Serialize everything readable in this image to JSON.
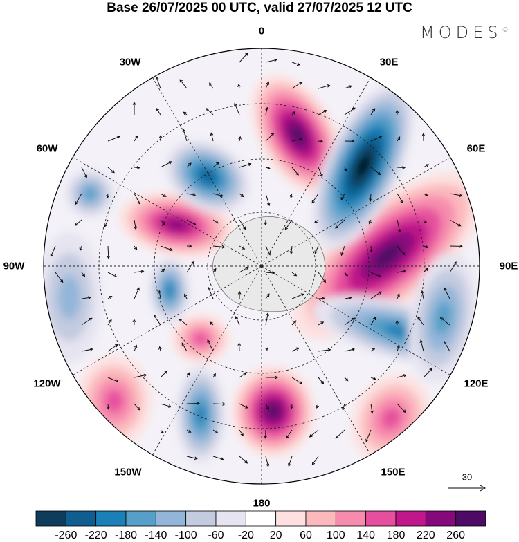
{
  "title": "Base 26/07/2025 00 UTC, valid 27/07/2025 12 UTC",
  "logo": "MODES",
  "logo_mark": "©",
  "longitude_labels": [
    "0",
    "30E",
    "60E",
    "90E",
    "120E",
    "150E",
    "180",
    "150W",
    "120W",
    "90W",
    "60W",
    "30W"
  ],
  "vector_reference": {
    "label": "30"
  },
  "colorbar": {
    "ticks": [
      "-260",
      "-220",
      "-180",
      "-140",
      "-100",
      "-60",
      "-20",
      "20",
      "60",
      "100",
      "140",
      "180",
      "220",
      "260"
    ],
    "colors": [
      "#0d3d5a",
      "#0f5e8f",
      "#1b80b8",
      "#569fc8",
      "#93b5d8",
      "#c3cbe0",
      "#e6e4f0",
      "#ffffff",
      "#fde0df",
      "#fbb9bd",
      "#f78bad",
      "#e64f9d",
      "#c0178a",
      "#86097c",
      "#4d0b66"
    ]
  }
}
